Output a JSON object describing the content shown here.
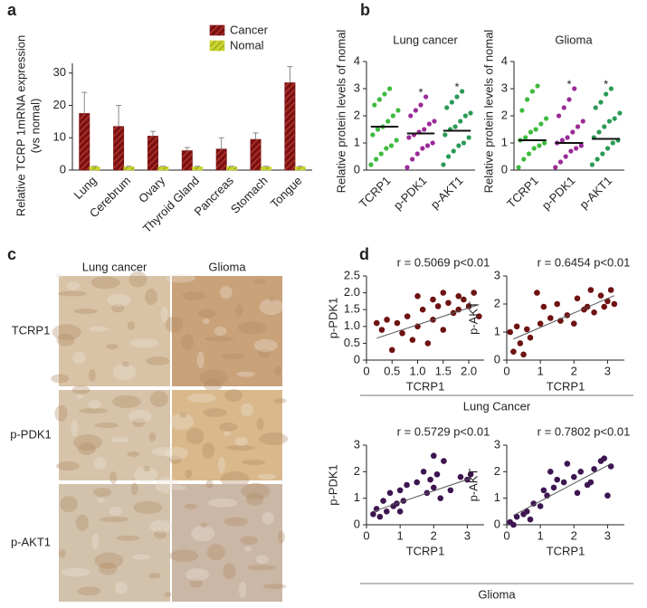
{
  "chart_data": [
    {
      "type": "bar",
      "panel": "a",
      "ylabel": [
        "Relative TCRP 1mRNA expression",
        "(vs nomal)"
      ],
      "categories": [
        "Lung",
        "Cerebrum",
        "Ovary",
        "Thyroid Gland",
        "Pancreas",
        "Stomach",
        "Tongue"
      ],
      "series": [
        {
          "name": "Cancer",
          "color": "#7a1214",
          "values": [
            17.5,
            13.5,
            10.5,
            6,
            6.5,
            9.5,
            27
          ],
          "errors": [
            6.5,
            6.5,
            1.5,
            1,
            3.5,
            2,
            5
          ]
        },
        {
          "name": "Nomal",
          "color": "#c9d42e",
          "values": [
            1,
            1,
            1,
            1,
            1,
            1,
            1
          ],
          "errors": [
            0.2,
            0.2,
            0.2,
            0.2,
            0.2,
            0.2,
            0.2
          ]
        }
      ],
      "ylim": [
        0,
        33
      ],
      "yticks": [
        0,
        10,
        20,
        30
      ]
    },
    {
      "type": "strip",
      "panel": "b",
      "title": "Lung cancer",
      "ylabel": "Relative protein levels of nomal",
      "categories": [
        "TCRP1",
        "p-PDK1",
        "p-AKT1"
      ],
      "colors": [
        "#3dbb3d",
        "#9a2a98",
        "#2a9a55"
      ],
      "values": [
        [
          0.2,
          0.4,
          0.6,
          0.8,
          0.9,
          1.1,
          1.3,
          1.5,
          1.6,
          1.8,
          2.0,
          2.2,
          2.4,
          2.6,
          2.8,
          3.0
        ],
        [
          0.1,
          0.4,
          0.6,
          0.8,
          0.9,
          1.0,
          1.2,
          1.3,
          1.4,
          1.5,
          1.7,
          1.8,
          2.0,
          2.2,
          2.4,
          2.7
        ],
        [
          0.2,
          0.5,
          0.7,
          0.9,
          1.0,
          1.2,
          1.3,
          1.5,
          1.6,
          1.8,
          2.0,
          2.1,
          2.3,
          2.5,
          2.7,
          2.9
        ]
      ],
      "medians": [
        1.6,
        1.35,
        1.45
      ],
      "significance": [
        null,
        "*",
        "*"
      ],
      "ylim": [
        0,
        4
      ],
      "yticks": [
        0,
        1,
        2,
        3,
        4
      ]
    },
    {
      "type": "strip",
      "title": "Glioma",
      "ylabel": "Relative protein levels of nomal",
      "categories": [
        "TCRP1",
        "p-PDK1",
        "p-AKT1"
      ],
      "colors": [
        "#3dbb3d",
        "#9a2a98",
        "#2a9a55"
      ],
      "values": [
        [
          0.1,
          0.4,
          0.6,
          0.8,
          0.9,
          1.0,
          1.1,
          1.2,
          1.4,
          1.5,
          1.7,
          1.9,
          2.2,
          2.6,
          2.9,
          3.1
        ],
        [
          0.1,
          0.3,
          0.5,
          0.7,
          0.8,
          0.9,
          1.0,
          1.1,
          1.2,
          1.4,
          1.6,
          1.8,
          2.0,
          2.3,
          2.6,
          3.0
        ],
        [
          0.2,
          0.4,
          0.6,
          0.8,
          1.0,
          1.1,
          1.2,
          1.4,
          1.6,
          1.8,
          1.9,
          2.1,
          2.3,
          2.5,
          2.8,
          3.0
        ]
      ],
      "medians": [
        1.1,
        1.0,
        1.15
      ],
      "significance": [
        null,
        "*",
        "*"
      ],
      "ylim": [
        0,
        4
      ],
      "yticks": [
        0,
        1,
        2,
        3,
        4
      ]
    },
    {
      "type": "image",
      "panel": "c",
      "columns": [
        "Lung cancer",
        "Glioma"
      ],
      "rows": [
        "TCRP1",
        "p-PDK1",
        "p-AKT1"
      ]
    },
    {
      "type": "scatter",
      "panel": "d",
      "annotation": "r = 0.5069 p<0.01",
      "xlabel": "TCRP1",
      "ylabel": "p-PDK1",
      "color": "#6e1212",
      "x": [
        0.2,
        0.3,
        0.4,
        0.5,
        0.6,
        0.7,
        0.8,
        0.9,
        1.0,
        1.0,
        1.1,
        1.2,
        1.3,
        1.3,
        1.4,
        1.5,
        1.5,
        1.6,
        1.7,
        1.8,
        1.8,
        1.9,
        2.0,
        2.1,
        2.2
      ],
      "y": [
        1.1,
        0.9,
        1.2,
        0.3,
        1.1,
        0.8,
        1.3,
        0.6,
        1.0,
        1.9,
        1.5,
        0.5,
        1.8,
        1.2,
        1.6,
        2.0,
        0.9,
        1.7,
        1.4,
        1.9,
        1.5,
        1.8,
        1.6,
        2.0,
        1.3
      ],
      "fit_x": [
        0.2,
        2.2
      ],
      "fit_y": [
        0.65,
        1.65
      ],
      "xlim": [
        0,
        2.3
      ],
      "ylim": [
        0,
        2.5
      ],
      "xticks": [
        0,
        0.5,
        {
          "value": 1,
          "label": "1.0"
        },
        1.5,
        {
          "value": 2,
          "label": "2.0"
        }
      ],
      "yticks": [
        0,
        0.5,
        {
          "value": 1,
          "label": "1.0"
        },
        1.5,
        {
          "value": 2,
          "label": "2.0"
        },
        2.5
      ]
    },
    {
      "type": "scatter",
      "annotation": "r = 0.6454 p<0.01",
      "xlabel": "TCRP1",
      "ylabel": "p-AKT",
      "color": "#6e1212",
      "group": "Lung Cancer",
      "x": [
        0.1,
        0.2,
        0.3,
        0.4,
        0.5,
        0.6,
        0.7,
        0.9,
        1.0,
        1.1,
        1.3,
        1.5,
        1.6,
        1.8,
        2.0,
        2.1,
        2.3,
        2.4,
        2.5,
        2.6,
        2.8,
        2.9,
        3.0,
        3.1,
        3.2
      ],
      "y": [
        1.0,
        0.3,
        1.2,
        0.6,
        0.2,
        1.1,
        0.8,
        2.4,
        1.3,
        1.9,
        1.5,
        2.0,
        1.4,
        1.6,
        1.3,
        2.2,
        1.8,
        1.9,
        2.5,
        1.7,
        2.3,
        1.9,
        2.1,
        2.5,
        2.0
      ],
      "fit_x": [
        0.2,
        3.2
      ],
      "fit_y": [
        0.75,
        2.3
      ],
      "xlim": [
        0,
        3.5
      ],
      "ylim": [
        0,
        3
      ],
      "xticks": [
        0,
        1,
        2,
        3
      ],
      "yticks": [
        0,
        1,
        2,
        3
      ]
    },
    {
      "type": "scatter",
      "annotation": "r = 0.5729 p<0.01",
      "xlabel": "TCRP1",
      "ylabel": "p-PDK1",
      "color": "#3d1550",
      "x": [
        0.2,
        0.3,
        0.4,
        0.5,
        0.6,
        0.7,
        0.8,
        0.9,
        1.0,
        1.0,
        1.1,
        1.2,
        1.5,
        1.7,
        1.8,
        1.9,
        2.0,
        2.0,
        2.1,
        2.2,
        2.3,
        2.5,
        2.8,
        3.0,
        3.1
      ],
      "y": [
        0.4,
        0.6,
        0.3,
        0.9,
        0.5,
        1.2,
        0.7,
        0.8,
        0.5,
        1.3,
        0.9,
        1.5,
        1.6,
        2.0,
        1.2,
        1.7,
        2.6,
        1.4,
        1.9,
        1.0,
        2.4,
        1.3,
        1.8,
        1.7,
        1.9
      ],
      "fit_x": [
        0.2,
        3.1
      ],
      "fit_y": [
        0.5,
        1.75
      ],
      "xlim": [
        0,
        3.5
      ],
      "ylim": [
        0,
        3
      ],
      "xticks": [
        0,
        1,
        2,
        3
      ],
      "yticks": [
        0,
        1,
        2,
        3
      ]
    },
    {
      "type": "scatter",
      "annotation": "r = 0.7802 p<0.01",
      "xlabel": "TCRP1",
      "ylabel": "p-AKT",
      "color": "#3d1550",
      "group": "Glioma",
      "x": [
        0.1,
        0.2,
        0.3,
        0.5,
        0.6,
        0.7,
        0.8,
        1.0,
        1.1,
        1.2,
        1.3,
        1.4,
        1.5,
        1.7,
        1.8,
        2.0,
        2.1,
        2.2,
        2.4,
        2.5,
        2.6,
        2.8,
        2.9,
        3.0,
        3.1
      ],
      "y": [
        0.1,
        0.0,
        0.3,
        0.4,
        0.5,
        0.2,
        0.8,
        0.7,
        1.3,
        1.1,
        2.0,
        1.4,
        1.7,
        1.6,
        2.3,
        1.8,
        1.2,
        2.0,
        1.5,
        1.6,
        2.1,
        2.4,
        2.5,
        1.1,
        2.2
      ],
      "fit_x": [
        0.2,
        3.1
      ],
      "fit_y": [
        0.35,
        2.3
      ],
      "xlim": [
        0,
        3.5
      ],
      "ylim": [
        0,
        3
      ],
      "xticks": [
        0,
        1,
        2,
        3
      ],
      "yticks": [
        0,
        1,
        2,
        3
      ]
    }
  ]
}
